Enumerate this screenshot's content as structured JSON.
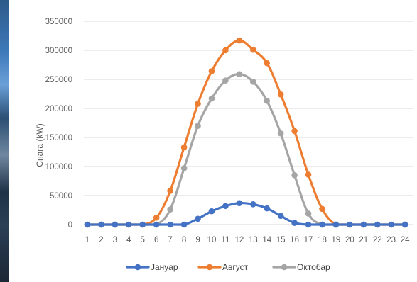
{
  "chart_data": {
    "type": "line",
    "title": "",
    "xlabel": "",
    "ylabel": "Снага (kW)",
    "categories": [
      "1",
      "2",
      "3",
      "4",
      "5",
      "6",
      "7",
      "8",
      "9",
      "10",
      "11",
      "12",
      "13",
      "14",
      "15",
      "16",
      "17",
      "18",
      "19",
      "20",
      "21",
      "22",
      "23",
      "24"
    ],
    "ylim": [
      0,
      350000
    ],
    "yticks": [
      "350000",
      "300000",
      "250000",
      "200000",
      "150000",
      "100000",
      "50000",
      "0"
    ],
    "grid": true,
    "legend_position": "bottom",
    "series": [
      {
        "name": "Јануар",
        "color": "#4472C4",
        "values": [
          0,
          0,
          0,
          0,
          0,
          0,
          0,
          0,
          10000,
          23000,
          32000,
          37000,
          35000,
          28000,
          15000,
          3000,
          0,
          0,
          0,
          0,
          0,
          0,
          0,
          0
        ]
      },
      {
        "name": "Август",
        "color": "#ED7D31",
        "values": [
          0,
          0,
          0,
          0,
          0,
          12000,
          58000,
          133000,
          208000,
          264000,
          300000,
          317000,
          301000,
          278000,
          224000,
          161000,
          86000,
          27000,
          0,
          0,
          0,
          0,
          0,
          0
        ]
      },
      {
        "name": "Октобар",
        "color": "#A5A5A5",
        "values": [
          0,
          0,
          0,
          0,
          0,
          0,
          26000,
          97000,
          170000,
          217000,
          248000,
          259000,
          246000,
          213000,
          157000,
          85000,
          19000,
          0,
          0,
          0,
          0,
          0,
          0,
          0
        ]
      }
    ]
  }
}
